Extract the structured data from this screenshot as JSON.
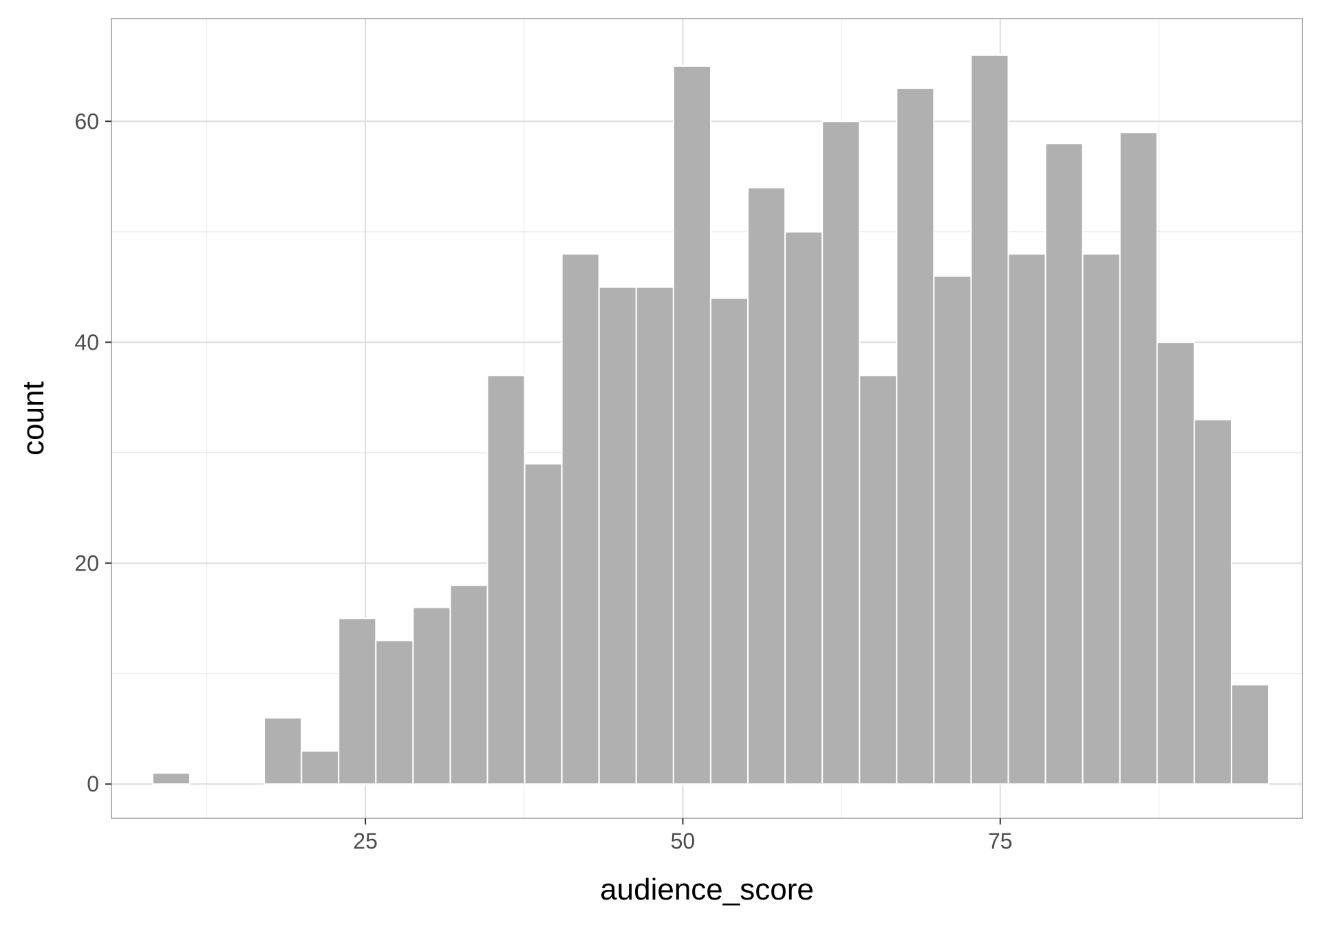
{
  "chart_data": {
    "type": "bar",
    "subtype": "histogram",
    "xlabel": "audience_score",
    "ylabel": "count",
    "xlim": [
      5.0,
      98.8
    ],
    "ylim": [
      -3.1,
      69.3
    ],
    "x_ticks": [
      25,
      50,
      75
    ],
    "y_ticks": [
      0,
      20,
      40,
      60
    ],
    "x_minor_gridlines": [
      12.5,
      37.5,
      62.5,
      87.5
    ],
    "y_minor_gridlines": [
      10,
      30,
      50
    ],
    "grid": true,
    "bin_width": 2.93,
    "bins": [
      {
        "x": 9.71,
        "count": 1
      },
      {
        "x": 12.64,
        "count": 0
      },
      {
        "x": 15.57,
        "count": 0
      },
      {
        "x": 18.5,
        "count": 6
      },
      {
        "x": 21.43,
        "count": 3
      },
      {
        "x": 24.36,
        "count": 15
      },
      {
        "x": 27.29,
        "count": 13
      },
      {
        "x": 30.22,
        "count": 16
      },
      {
        "x": 33.15,
        "count": 18
      },
      {
        "x": 36.08,
        "count": 37
      },
      {
        "x": 39.01,
        "count": 29
      },
      {
        "x": 41.94,
        "count": 48
      },
      {
        "x": 44.87,
        "count": 45
      },
      {
        "x": 47.8,
        "count": 45
      },
      {
        "x": 50.73,
        "count": 65
      },
      {
        "x": 53.66,
        "count": 44
      },
      {
        "x": 56.59,
        "count": 54
      },
      {
        "x": 59.52,
        "count": 50
      },
      {
        "x": 62.45,
        "count": 60
      },
      {
        "x": 65.38,
        "count": 37
      },
      {
        "x": 68.31,
        "count": 63
      },
      {
        "x": 71.24,
        "count": 46
      },
      {
        "x": 74.17,
        "count": 66
      },
      {
        "x": 77.1,
        "count": 48
      },
      {
        "x": 80.03,
        "count": 58
      },
      {
        "x": 82.96,
        "count": 48
      },
      {
        "x": 85.89,
        "count": 59
      },
      {
        "x": 88.82,
        "count": 40
      },
      {
        "x": 91.75,
        "count": 33
      },
      {
        "x": 94.68,
        "count": 9
      }
    ],
    "colors": {
      "bar_fill": "#b0b0b0",
      "bar_outline": "#ffffff",
      "panel_border": "#b3b3b3",
      "grid_major": "#dedede",
      "grid_minor": "#ececec",
      "tick_mark": "#333333",
      "tick_text": "#4d4d4d",
      "title_text": "#000000"
    }
  }
}
